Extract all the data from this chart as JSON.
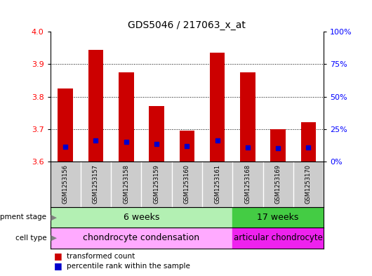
{
  "title": "GDS5046 / 217063_x_at",
  "samples": [
    "GSM1253156",
    "GSM1253157",
    "GSM1253158",
    "GSM1253159",
    "GSM1253160",
    "GSM1253161",
    "GSM1253168",
    "GSM1253169",
    "GSM1253170"
  ],
  "transformed_count": [
    3.825,
    3.945,
    3.875,
    3.77,
    3.695,
    3.935,
    3.875,
    3.7,
    3.72
  ],
  "percentile_values": [
    3.645,
    3.665,
    3.66,
    3.655,
    3.648,
    3.665,
    3.643,
    3.642,
    3.643
  ],
  "ylim_left": [
    3.6,
    4.0
  ],
  "ylim_right": [
    0,
    100
  ],
  "yticks_left": [
    3.6,
    3.7,
    3.8,
    3.9,
    4.0
  ],
  "yticks_right": [
    0,
    25,
    50,
    75,
    100
  ],
  "bar_color": "#cc0000",
  "percentile_color": "#0000cc",
  "dev_stage_6w_label": "6 weeks",
  "dev_stage_17w_label": "17 weeks",
  "cell_type_6w_label": "chondrocyte condensation",
  "cell_type_17w_label": "articular chondrocyte",
  "dev_stage_6w_color": "#b3f0b3",
  "dev_stage_17w_color": "#44cc44",
  "cell_type_6w_color": "#ffaaff",
  "cell_type_17w_color": "#ee22ee",
  "legend_transformed": "transformed count",
  "legend_percentile": "percentile rank within the sample",
  "split_index": 6,
  "bar_width": 0.5,
  "base": 3.6,
  "sample_bg_color": "#cccccc",
  "sample_divider_color": "#ffffff",
  "fig_bg_color": "#ffffff"
}
